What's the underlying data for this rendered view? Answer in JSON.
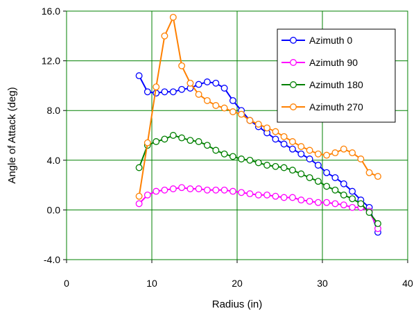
{
  "chart_data": {
    "type": "line",
    "title": "",
    "xlabel": "Radius (in)",
    "ylabel": "Angle of Attack (deg)",
    "xlim": [
      0,
      40
    ],
    "ylim": [
      -4,
      16
    ],
    "xticks": [
      0,
      10,
      20,
      30,
      40
    ],
    "yticks": [
      -4,
      0,
      4,
      8,
      12,
      16
    ],
    "xtick_labels": [
      "0",
      "10",
      "20",
      "30",
      "40"
    ],
    "ytick_labels": [
      "-4.0",
      "0.0",
      "4.0",
      "8.0",
      "12.0",
      "16.0"
    ],
    "grid": true,
    "legend_position": "top-right",
    "series": [
      {
        "name": "Azimuth 0",
        "color": "#0000ff",
        "points": [
          [
            8.5,
            10.8
          ],
          [
            9.5,
            9.5
          ],
          [
            10.5,
            9.4
          ],
          [
            11.5,
            9.5
          ],
          [
            12.5,
            9.5
          ],
          [
            13.5,
            9.7
          ],
          [
            14.5,
            9.8
          ],
          [
            15.5,
            10.1
          ],
          [
            16.5,
            10.3
          ],
          [
            17.5,
            10.2
          ],
          [
            18.5,
            9.8
          ],
          [
            19.5,
            8.8
          ],
          [
            20.5,
            8.0
          ],
          [
            21.5,
            7.2
          ],
          [
            22.5,
            6.7
          ],
          [
            23.5,
            6.2
          ],
          [
            24.5,
            5.7
          ],
          [
            25.5,
            5.3
          ],
          [
            26.5,
            4.9
          ],
          [
            27.5,
            4.5
          ],
          [
            28.5,
            4.1
          ],
          [
            29.5,
            3.6
          ],
          [
            30.5,
            3.0
          ],
          [
            31.5,
            2.6
          ],
          [
            32.5,
            2.1
          ],
          [
            33.5,
            1.5
          ],
          [
            34.5,
            0.8
          ],
          [
            35.5,
            0.2
          ],
          [
            36.5,
            -1.8
          ]
        ]
      },
      {
        "name": "Azimuth 90",
        "color": "#ff00ff",
        "points": [
          [
            8.5,
            0.5
          ],
          [
            9.5,
            1.2
          ],
          [
            10.5,
            1.5
          ],
          [
            11.5,
            1.6
          ],
          [
            12.5,
            1.7
          ],
          [
            13.5,
            1.8
          ],
          [
            14.5,
            1.7
          ],
          [
            15.5,
            1.7
          ],
          [
            16.5,
            1.6
          ],
          [
            17.5,
            1.6
          ],
          [
            18.5,
            1.6
          ],
          [
            19.5,
            1.5
          ],
          [
            20.5,
            1.4
          ],
          [
            21.5,
            1.3
          ],
          [
            22.5,
            1.2
          ],
          [
            23.5,
            1.2
          ],
          [
            24.5,
            1.1
          ],
          [
            25.5,
            1.0
          ],
          [
            26.5,
            1.0
          ],
          [
            27.5,
            0.8
          ],
          [
            28.5,
            0.7
          ],
          [
            29.5,
            0.6
          ],
          [
            30.5,
            0.6
          ],
          [
            31.5,
            0.5
          ],
          [
            32.5,
            0.4
          ],
          [
            33.5,
            0.2
          ],
          [
            34.5,
            0.2
          ],
          [
            35.5,
            -0.1
          ],
          [
            36.5,
            -1.5
          ]
        ]
      },
      {
        "name": "Azimuth 180",
        "color": "#008000",
        "points": [
          [
            8.5,
            3.4
          ],
          [
            9.5,
            5.2
          ],
          [
            10.5,
            5.5
          ],
          [
            11.5,
            5.7
          ],
          [
            12.5,
            6.0
          ],
          [
            13.5,
            5.8
          ],
          [
            14.5,
            5.6
          ],
          [
            15.5,
            5.5
          ],
          [
            16.5,
            5.2
          ],
          [
            17.5,
            4.8
          ],
          [
            18.5,
            4.5
          ],
          [
            19.5,
            4.3
          ],
          [
            20.5,
            4.1
          ],
          [
            21.5,
            4.0
          ],
          [
            22.5,
            3.8
          ],
          [
            23.5,
            3.6
          ],
          [
            24.5,
            3.5
          ],
          [
            25.5,
            3.4
          ],
          [
            26.5,
            3.2
          ],
          [
            27.5,
            2.9
          ],
          [
            28.5,
            2.6
          ],
          [
            29.5,
            2.3
          ],
          [
            30.5,
            1.9
          ],
          [
            31.5,
            1.6
          ],
          [
            32.5,
            1.2
          ],
          [
            33.5,
            0.9
          ],
          [
            34.5,
            0.5
          ],
          [
            35.5,
            -0.2
          ],
          [
            36.5,
            -1.1
          ]
        ]
      },
      {
        "name": "Azimuth 270",
        "color": "#ff8000",
        "points": [
          [
            8.5,
            1.1
          ],
          [
            9.5,
            5.4
          ],
          [
            10.5,
            9.9
          ],
          [
            11.5,
            14.0
          ],
          [
            12.5,
            15.5
          ],
          [
            13.5,
            11.6
          ],
          [
            14.5,
            10.2
          ],
          [
            15.5,
            9.3
          ],
          [
            16.5,
            8.8
          ],
          [
            17.5,
            8.4
          ],
          [
            18.5,
            8.2
          ],
          [
            19.5,
            7.9
          ],
          [
            20.5,
            7.7
          ],
          [
            21.5,
            7.2
          ],
          [
            22.5,
            6.9
          ],
          [
            23.5,
            6.6
          ],
          [
            24.5,
            6.3
          ],
          [
            25.5,
            5.9
          ],
          [
            26.5,
            5.5
          ],
          [
            27.5,
            5.1
          ],
          [
            28.5,
            4.8
          ],
          [
            29.5,
            4.5
          ],
          [
            30.5,
            4.4
          ],
          [
            31.5,
            4.6
          ],
          [
            32.5,
            4.9
          ],
          [
            33.5,
            4.6
          ],
          [
            34.5,
            4.1
          ],
          [
            35.5,
            3.0
          ],
          [
            36.5,
            2.7
          ]
        ]
      }
    ]
  }
}
